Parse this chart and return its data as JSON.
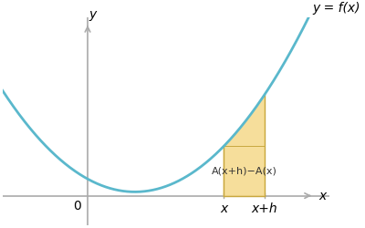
{
  "bg_color": "#ffffff",
  "curve_color": "#5ab8cc",
  "shade_color": "#f5d98a",
  "shade_edge_color": "#c8a840",
  "axis_color": "#aaaaaa",
  "x_min": -2.5,
  "x_max": 6.5,
  "y_min": -0.8,
  "y_max": 4.5,
  "x_val": 4.0,
  "x_plus_h_val": 5.2,
  "label_curve": "y = f(x)",
  "label_area": "A(x+h)−A(x)",
  "label_x": "x",
  "label_xh": "x+h",
  "label_origin": "0",
  "label_yaxis": "y",
  "label_xaxis": "x",
  "curve_linewidth": 2.0,
  "font_size": 10,
  "a": 0.18,
  "b": -0.5,
  "c": 0.45
}
